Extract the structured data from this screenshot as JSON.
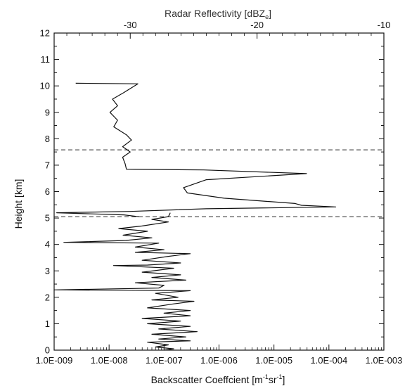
{
  "chart_data": {
    "type": "line",
    "title": "",
    "bottom_axis": {
      "label": "Backscatter Coeffcient [m",
      "label_sup1": "-1",
      "label_mid": "sr",
      "label_sup2": "-1",
      "label_end": "]",
      "scale": "log",
      "range": [
        1e-09,
        0.001
      ],
      "tick_labels": [
        "1.0E-009",
        "1.0E-008",
        "1.0E-007",
        "1.0E-006",
        "1.0E-005",
        "1.0E-004",
        "1.0E-003"
      ]
    },
    "top_axis": {
      "label": "Radar Reflectivity [dBZ",
      "label_sub": "e",
      "label_end": "]",
      "range": [
        -36,
        -10
      ],
      "tick_values": [
        -30,
        -20,
        -10
      ],
      "tick_labels": [
        "-30",
        "-20",
        "-10"
      ]
    },
    "y_axis": {
      "label": "Height [km]",
      "range": [
        0,
        12
      ],
      "tick_labels": [
        "0",
        "1",
        "2",
        "3",
        "4",
        "5",
        "6",
        "7",
        "8",
        "9",
        "10",
        "11",
        "12"
      ]
    },
    "reference_lines": [
      {
        "y": 7.58,
        "style": "dashed"
      },
      {
        "y": 5.05,
        "style": "dashed"
      }
    ],
    "series": [
      {
        "axis": "top",
        "points": [
          [
            -34.3,
            10.1
          ],
          [
            -29.4,
            10.08
          ],
          [
            -30.5,
            9.75
          ],
          [
            -31.4,
            9.5
          ],
          [
            -31.0,
            9.25
          ],
          [
            -31.6,
            9.0
          ],
          [
            -31.0,
            8.7
          ],
          [
            -31.3,
            8.45
          ],
          [
            -30.3,
            8.15
          ],
          [
            -29.9,
            7.95
          ],
          [
            -30.6,
            7.7
          ],
          [
            -30.0,
            7.5
          ],
          [
            -30.6,
            7.3
          ],
          [
            -30.4,
            7.05
          ],
          [
            -30.3,
            6.85
          ],
          [
            -24.2,
            6.82
          ],
          [
            -16.1,
            6.68
          ],
          [
            -24.0,
            6.45
          ],
          [
            -25.8,
            6.15
          ],
          [
            -25.5,
            5.95
          ],
          [
            -22.6,
            5.75
          ],
          [
            -17.0,
            5.55
          ],
          [
            -16.5,
            5.48
          ],
          [
            -13.8,
            5.42
          ],
          [
            -24.0,
            5.35
          ],
          [
            -30.0,
            5.25
          ],
          [
            -35.8,
            5.2
          ],
          [
            -30.5,
            5.12
          ],
          [
            -29.3,
            5.05
          ]
        ]
      },
      {
        "axis": "bottom",
        "points": [
          [
            1.3e-07,
            5.2
          ],
          [
            1.2e-07,
            5.05
          ],
          [
            6e-08,
            4.95
          ],
          [
            1.2e-07,
            4.85
          ],
          [
            4e-08,
            4.7
          ],
          [
            1.5e-08,
            4.6
          ],
          [
            5e-08,
            4.5
          ],
          [
            1.8e-08,
            4.35
          ],
          [
            6e-08,
            4.25
          ],
          [
            2e-08,
            4.15
          ],
          [
            1.5e-09,
            4.08
          ],
          [
            8e-08,
            4.05
          ],
          [
            3e-08,
            3.9
          ],
          [
            1e-07,
            3.8
          ],
          [
            3e-08,
            3.7
          ],
          [
            3e-07,
            3.65
          ],
          [
            1.2e-07,
            3.55
          ],
          [
            4e-08,
            3.4
          ],
          [
            2e-07,
            3.3
          ],
          [
            5e-08,
            3.22
          ],
          [
            1.2e-08,
            3.2
          ],
          [
            1.5e-07,
            3.1
          ],
          [
            4e-08,
            2.95
          ],
          [
            2e-07,
            2.85
          ],
          [
            6e-08,
            2.75
          ],
          [
            2.5e-07,
            2.65
          ],
          [
            3e-08,
            2.55
          ],
          [
            1e-07,
            2.45
          ],
          [
            8e-08,
            2.35
          ],
          [
            1e-09,
            2.28
          ],
          [
            3e-07,
            2.25
          ],
          [
            7e-08,
            2.15
          ],
          [
            1.8e-07,
            2.0
          ],
          [
            6e-08,
            1.9
          ],
          [
            3.5e-07,
            1.85
          ],
          [
            1.5e-07,
            1.75
          ],
          [
            5e-08,
            1.6
          ],
          [
            3e-07,
            1.5
          ],
          [
            1e-07,
            1.4
          ],
          [
            3e-07,
            1.3
          ],
          [
            4e-08,
            1.2
          ],
          [
            2e-07,
            1.1
          ],
          [
            5e-08,
            1.0
          ],
          [
            3e-07,
            0.9
          ],
          [
            8e-08,
            0.8
          ],
          [
            4e-07,
            0.7
          ],
          [
            6e-08,
            0.6
          ],
          [
            2.5e-07,
            0.5
          ],
          [
            8e-08,
            0.42
          ],
          [
            3e-07,
            0.35
          ],
          [
            5e-08,
            0.3
          ],
          [
            1.2e-07,
            0.2
          ],
          [
            7e-08,
            0.12
          ],
          [
            1.5e-07,
            0.05
          ],
          [
            1e-07,
            0.0
          ]
        ]
      }
    ]
  }
}
